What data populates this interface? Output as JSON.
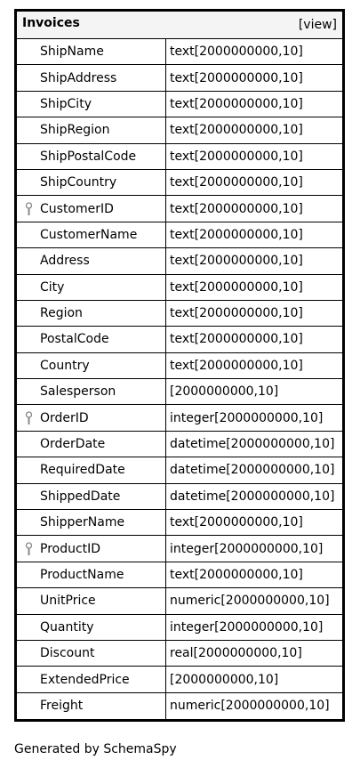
{
  "table": {
    "name": "Invoices",
    "view_link": "[view]",
    "columns": [
      {
        "name": "ShipName",
        "type": "text[2000000000,10]",
        "key": false
      },
      {
        "name": "ShipAddress",
        "type": "text[2000000000,10]",
        "key": false
      },
      {
        "name": "ShipCity",
        "type": "text[2000000000,10]",
        "key": false
      },
      {
        "name": "ShipRegion",
        "type": "text[2000000000,10]",
        "key": false
      },
      {
        "name": "ShipPostalCode",
        "type": "text[2000000000,10]",
        "key": false
      },
      {
        "name": "ShipCountry",
        "type": "text[2000000000,10]",
        "key": false
      },
      {
        "name": "CustomerID",
        "type": "text[2000000000,10]",
        "key": true
      },
      {
        "name": "CustomerName",
        "type": "text[2000000000,10]",
        "key": false
      },
      {
        "name": "Address",
        "type": "text[2000000000,10]",
        "key": false
      },
      {
        "name": "City",
        "type": "text[2000000000,10]",
        "key": false
      },
      {
        "name": "Region",
        "type": "text[2000000000,10]",
        "key": false
      },
      {
        "name": "PostalCode",
        "type": "text[2000000000,10]",
        "key": false
      },
      {
        "name": "Country",
        "type": "text[2000000000,10]",
        "key": false
      },
      {
        "name": "Salesperson",
        "type": "[2000000000,10]",
        "key": false
      },
      {
        "name": "OrderID",
        "type": "integer[2000000000,10]",
        "key": true
      },
      {
        "name": "OrderDate",
        "type": "datetime[2000000000,10]",
        "key": false
      },
      {
        "name": "RequiredDate",
        "type": "datetime[2000000000,10]",
        "key": false
      },
      {
        "name": "ShippedDate",
        "type": "datetime[2000000000,10]",
        "key": false
      },
      {
        "name": "ShipperName",
        "type": "text[2000000000,10]",
        "key": false
      },
      {
        "name": "ProductID",
        "type": "integer[2000000000,10]",
        "key": true
      },
      {
        "name": "ProductName",
        "type": "text[2000000000,10]",
        "key": false
      },
      {
        "name": "UnitPrice",
        "type": "numeric[2000000000,10]",
        "key": false
      },
      {
        "name": "Quantity",
        "type": "integer[2000000000,10]",
        "key": false
      },
      {
        "name": "Discount",
        "type": "real[2000000000,10]",
        "key": false
      },
      {
        "name": "ExtendedPrice",
        "type": "[2000000000,10]",
        "key": false
      },
      {
        "name": "Freight",
        "type": "numeric[2000000000,10]",
        "key": false
      }
    ]
  },
  "icons": {
    "key": "key-icon"
  },
  "footer": {
    "text": "Generated by SchemaSpy"
  }
}
